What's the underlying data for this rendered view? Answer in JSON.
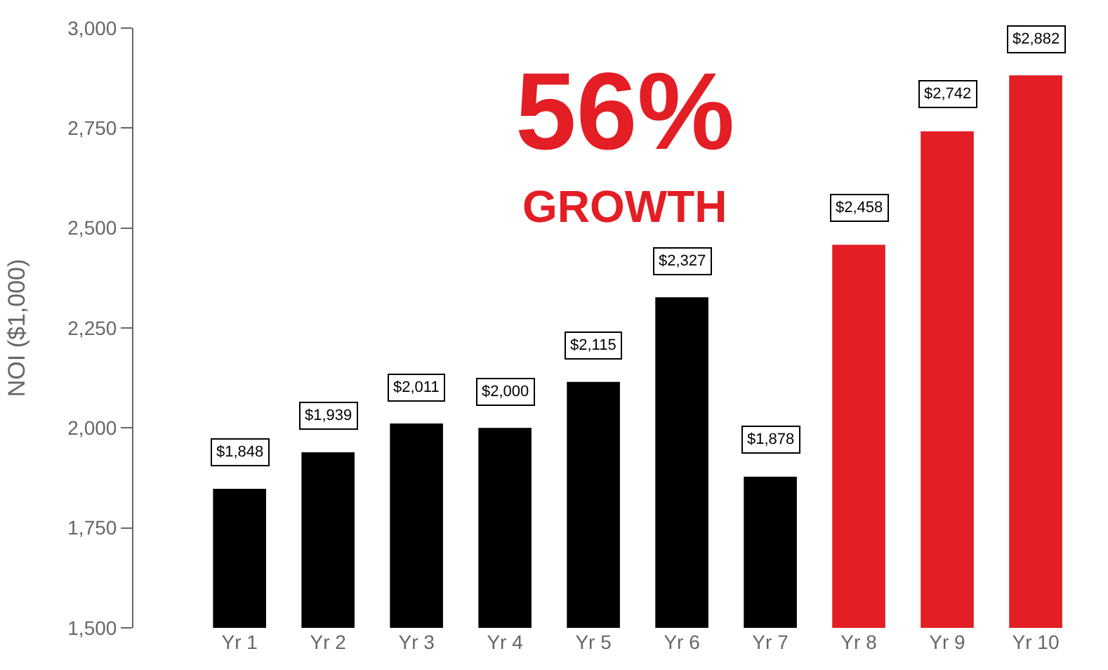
{
  "chart_data": {
    "type": "bar",
    "ylabel": "NOI ($1,000)",
    "categories": [
      "Yr 1",
      "Yr 2",
      "Yr 3",
      "Yr 4",
      "Yr 5",
      "Yr 6",
      "Yr 7",
      "Yr 8",
      "Yr 9",
      "Yr 10"
    ],
    "values": [
      1848,
      1939,
      2011,
      2000,
      2115,
      2327,
      1878,
      2458,
      2742,
      2882
    ],
    "colors": [
      "#000000",
      "#000000",
      "#000000",
      "#000000",
      "#000000",
      "#000000",
      "#000000",
      "#e31e24",
      "#e31e24",
      "#e31e24"
    ],
    "value_labels": [
      "$1,848",
      "$1,939",
      "$2,011",
      "$2,000",
      "$2,115",
      "$2,327",
      "$1,878",
      "$2,458",
      "$2,742",
      "$2,882"
    ],
    "ylim": [
      1500,
      3000
    ],
    "yticks": [
      {
        "value": 1500,
        "label": "1,500"
      },
      {
        "value": 1750,
        "label": "1,750"
      },
      {
        "value": 2000,
        "label": "2,000"
      },
      {
        "value": 2250,
        "label": "2,250"
      },
      {
        "value": 2500,
        "label": "2,500"
      },
      {
        "value": 2750,
        "label": "2,750"
      },
      {
        "value": 3000,
        "label": "3,000"
      }
    ],
    "annotations": [
      "56%",
      "GROWTH"
    ],
    "legend": false
  }
}
